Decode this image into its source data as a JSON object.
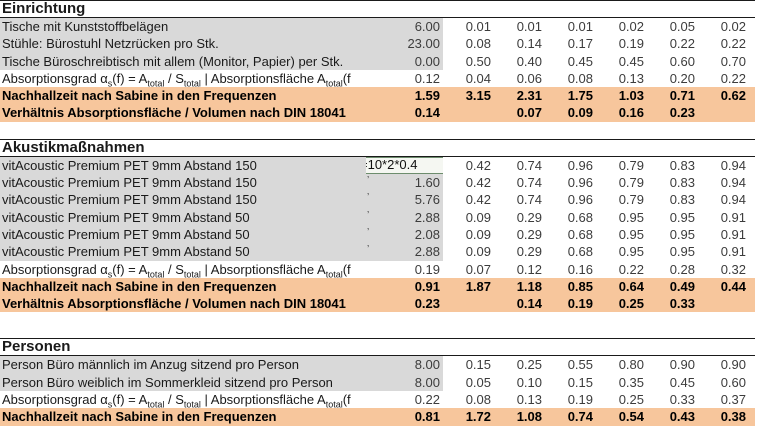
{
  "colors": {
    "result_band": "#F7C69C",
    "item_band": "#D9D9D9",
    "header_line": "#1a1a1a",
    "formula_border": "#6d8d6d"
  },
  "alpha_row_label_rich": [
    {
      "t": "Absorptionsgrad α"
    },
    {
      "t": "s",
      "s": true
    },
    {
      "t": "(f) = A"
    },
    {
      "t": "total",
      "s": true
    },
    {
      "t": " / S"
    },
    {
      "t": "total",
      "s": true
    },
    {
      "t": " | Absorptionsfläche A"
    },
    {
      "t": "total",
      "s": true
    },
    {
      "t": "(f"
    }
  ],
  "sections": [
    {
      "title": "Einrichtung",
      "rows": [
        {
          "type": "item",
          "label": "Tische mit Kunststoffbelägen",
          "value": "6.00",
          "freq": [
            "0.01",
            "0.01",
            "0.01",
            "0.02",
            "0.05",
            "0.02"
          ]
        },
        {
          "type": "item",
          "label": "Stühle: Bürostuhl Netzrücken pro Stk.",
          "value": "23.00",
          "freq": [
            "0.08",
            "0.14",
            "0.17",
            "0.19",
            "0.22",
            "0.22"
          ]
        },
        {
          "type": "item",
          "label": "Tische Büroschreibtisch mit allem (Monitor, Papier) per Stk.",
          "value": "0.00",
          "freq": [
            "0.50",
            "0.40",
            "0.45",
            "0.45",
            "0.60",
            "0.70"
          ]
        },
        {
          "type": "alpha",
          "rich": true,
          "value": "0.12",
          "freq": [
            "0.04",
            "0.06",
            "0.08",
            "0.13",
            "0.20",
            "0.22"
          ]
        },
        {
          "type": "result",
          "label": "Nachhallzeit nach Sabine in den Frequenzen",
          "value": "1.59",
          "freq": [
            "3.15",
            "2.31",
            "1.75",
            "1.03",
            "0.71",
            "0.62"
          ]
        },
        {
          "type": "result",
          "label": "Verhältnis Absorptionsfläche / Volumen nach DIN 18041",
          "value": "0.14",
          "freq": [
            "",
            "0.07",
            "0.09",
            "0.16",
            "0.23",
            ""
          ]
        }
      ]
    },
    {
      "title": "Akustikmaßnahmen",
      "rows": [
        {
          "type": "item",
          "label": "vitAcoustic Premium PET 9mm Abstand 150",
          "formula": "=10*2*0.4",
          "freq": [
            "0.42",
            "0.74",
            "0.96",
            "0.79",
            "0.83",
            "0.94"
          ]
        },
        {
          "type": "item",
          "label": "vitAcoustic Premium PET 9mm Abstand 150",
          "value": "1.60",
          "note": "’",
          "freq": [
            "0.42",
            "0.74",
            "0.96",
            "0.79",
            "0.83",
            "0.94"
          ]
        },
        {
          "type": "item",
          "label": "vitAcoustic Premium PET 9mm Abstand 150",
          "value": "5.76",
          "note": "’",
          "freq": [
            "0.42",
            "0.74",
            "0.96",
            "0.79",
            "0.83",
            "0.94"
          ]
        },
        {
          "type": "item",
          "label": "vitAcoustic Premium PET 9mm Abstand 50",
          "value": "2.88",
          "note": "’",
          "freq": [
            "0.09",
            "0.29",
            "0.68",
            "0.95",
            "0.95",
            "0.91"
          ]
        },
        {
          "type": "item",
          "label": "vitAcoustic Premium PET 9mm Abstand 50",
          "value": "2.08",
          "note": "’",
          "freq": [
            "0.09",
            "0.29",
            "0.68",
            "0.95",
            "0.95",
            "0.91"
          ]
        },
        {
          "type": "item",
          "label": "vitAcoustic Premium PET 9mm Abstand 50",
          "value": "2.88",
          "note": "’",
          "freq": [
            "0.09",
            "0.29",
            "0.68",
            "0.95",
            "0.95",
            "0.91"
          ]
        },
        {
          "type": "alpha",
          "rich": true,
          "value": "0.19",
          "freq": [
            "0.07",
            "0.12",
            "0.16",
            "0.22",
            "0.28",
            "0.32"
          ]
        },
        {
          "type": "result",
          "label": "Nachhallzeit nach Sabine in den Frequenzen",
          "value": "0.91",
          "freq": [
            "1.87",
            "1.18",
            "0.85",
            "0.64",
            "0.49",
            "0.44"
          ]
        },
        {
          "type": "result",
          "label": "Verhältnis Absorptionsfläche / Volumen nach DIN 18041",
          "value": "0.23",
          "freq": [
            "",
            "0.14",
            "0.19",
            "0.25",
            "0.33",
            ""
          ]
        }
      ]
    },
    {
      "title": "Personen",
      "rows": [
        {
          "type": "item",
          "label": "Person Büro männlich im Anzug sitzend pro Person",
          "value": "8.00",
          "freq": [
            "0.15",
            "0.25",
            "0.55",
            "0.80",
            "0.90",
            "0.90"
          ]
        },
        {
          "type": "item",
          "label": "Person Büro weiblich im Sommerkleid sitzend pro Person",
          "value": "8.00",
          "freq": [
            "0.05",
            "0.10",
            "0.15",
            "0.35",
            "0.45",
            "0.60"
          ]
        },
        {
          "type": "alpha",
          "rich": true,
          "value": "0.22",
          "freq": [
            "0.08",
            "0.13",
            "0.19",
            "0.25",
            "0.33",
            "0.37"
          ]
        },
        {
          "type": "result",
          "label": "Nachhallzeit nach Sabine in den Frequenzen",
          "value": "0.81",
          "freq": [
            "1.72",
            "1.08",
            "0.74",
            "0.54",
            "0.43",
            "0.38"
          ]
        }
      ]
    }
  ]
}
